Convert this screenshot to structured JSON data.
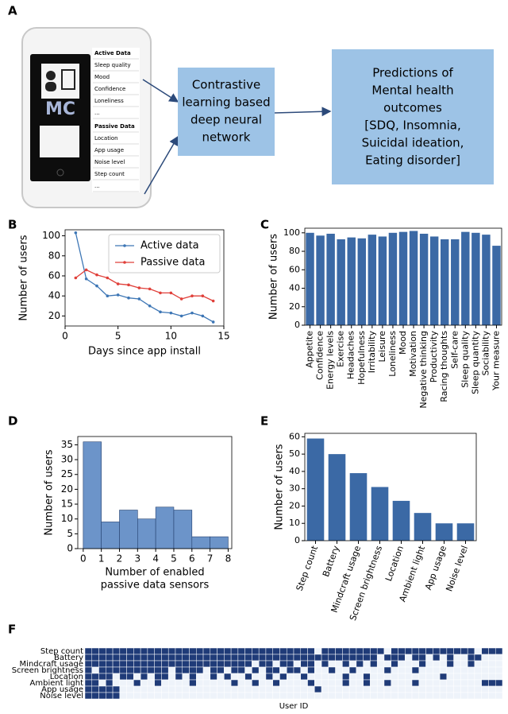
{
  "diagram": {
    "panel": "A",
    "phone": {
      "logo": "MC",
      "active_title": "Active Data",
      "active_items": [
        "Sleep quality",
        "Mood",
        "Confidence",
        "Loneliness",
        "..."
      ],
      "passive_title": "Passive Data",
      "passive_items": [
        "Location",
        "App usage",
        "Noise level",
        "Step count",
        "..."
      ]
    },
    "model": [
      "Contrastive",
      "learning based",
      "deep neural",
      "network"
    ],
    "output": [
      "Predictions of",
      "Mental health",
      "outcomes",
      "[SDQ, Insomnia,",
      "Suicidal ideation,",
      "Eating disorder]"
    ]
  },
  "chart_data": [
    {
      "type": "line",
      "panel": "B",
      "xlabel": "Days since app install",
      "ylabel": "Number of users",
      "x": [
        1,
        2,
        3,
        4,
        5,
        6,
        7,
        8,
        9,
        10,
        11,
        12,
        13,
        14
      ],
      "series": [
        {
          "name": "Active data",
          "color": "#3d76b5",
          "values": [
            103,
            57,
            50,
            40,
            41,
            38,
            37,
            30,
            24,
            23,
            20,
            23,
            20,
            14
          ]
        },
        {
          "name": "Passive data",
          "color": "#e0403a",
          "values": [
            58,
            66,
            61,
            58,
            52,
            51,
            48,
            47,
            43,
            43,
            37,
            40,
            40,
            35
          ]
        }
      ],
      "xlim": [
        0,
        15
      ],
      "xticks": [
        0,
        5,
        10,
        15
      ],
      "ylim": [
        10,
        106
      ],
      "yticks": [
        20,
        40,
        60,
        80,
        100
      ],
      "legend": "upper right"
    },
    {
      "type": "bar",
      "panel": "C",
      "ylabel": "Number of users",
      "categories": [
        "Appetite",
        "Confidence",
        "Energy levels",
        "Exercise",
        "Headaches",
        "Hopefulness",
        "Irritability",
        "Leisure",
        "Loneliness",
        "Mood",
        "Motivation",
        "Negative thinking",
        "Productivity",
        "Racing thoughts",
        "Self-care",
        "Sleep quality",
        "Sleep quantity",
        "Sociability",
        "Your measure"
      ],
      "values": [
        100,
        97,
        99,
        93,
        95,
        94,
        98,
        96,
        100,
        101,
        102,
        99,
        96,
        93,
        93,
        101,
        100,
        98,
        86
      ],
      "color": "#3b69a5",
      "ylim": [
        0,
        105
      ],
      "yticks": [
        0,
        20,
        40,
        60,
        80,
        100
      ]
    },
    {
      "type": "histogram",
      "panel": "D",
      "xlabel": [
        "Number of enabled",
        "passive data sensors"
      ],
      "ylabel": "Number of users",
      "bins": [
        0,
        1,
        2,
        3,
        4,
        5,
        6,
        7,
        8
      ],
      "values": [
        36,
        9,
        13,
        10,
        14,
        13,
        4,
        4
      ],
      "color": "#6c94c9",
      "edgecolor": "#24406e",
      "xlim": [
        -0.3,
        8.2
      ],
      "xticks": [
        0,
        1,
        2,
        3,
        4,
        5,
        6,
        7,
        8
      ],
      "ylim": [
        0,
        37.8
      ],
      "yticks": [
        0,
        5,
        10,
        15,
        20,
        25,
        30,
        35
      ]
    },
    {
      "type": "bar",
      "panel": "E",
      "ylabel": "Number of users",
      "categories": [
        "Step count",
        "Battery",
        "Mindcraft usage",
        "Screen brightness",
        "Location",
        "Ambient light",
        "App usage",
        "Noise level"
      ],
      "values": [
        59,
        50,
        39,
        31,
        23,
        16,
        10,
        10
      ],
      "color": "#3b69a5",
      "ylim": [
        0,
        62
      ],
      "yticks": [
        0,
        10,
        20,
        30,
        40,
        50,
        60
      ]
    },
    {
      "type": "heatmap",
      "panel": "F",
      "xlabel": "User ID",
      "rows": [
        "Step count",
        "Battery",
        "Mindcraft usage",
        "Screen brightness",
        "Location",
        "Ambient light",
        "App usage",
        "Noise level"
      ],
      "colors": [
        "#eef3fa",
        "#1f3b78"
      ],
      "values": [
        [
          1,
          1,
          1,
          1,
          1,
          1,
          1,
          1,
          1,
          1,
          1,
          1,
          1,
          1,
          1,
          1,
          1,
          1,
          1,
          1,
          1,
          1,
          1,
          1,
          1,
          1,
          1,
          1,
          1,
          1,
          1,
          1,
          1,
          0,
          1,
          1,
          1,
          1,
          1,
          1,
          1,
          1,
          1,
          0,
          1,
          1,
          1,
          1,
          1,
          1,
          1,
          1,
          1,
          1,
          1,
          1,
          0,
          1,
          1,
          1
        ],
        [
          1,
          1,
          1,
          1,
          1,
          1,
          1,
          1,
          1,
          1,
          1,
          1,
          1,
          1,
          1,
          1,
          1,
          1,
          1,
          1,
          1,
          1,
          1,
          1,
          1,
          1,
          1,
          1,
          1,
          1,
          1,
          1,
          1,
          1,
          1,
          1,
          1,
          1,
          1,
          1,
          1,
          1,
          0,
          1,
          1,
          1,
          0,
          1,
          1,
          0,
          1,
          0,
          1,
          0,
          0,
          1,
          1,
          0,
          0,
          0
        ],
        [
          1,
          1,
          1,
          1,
          1,
          1,
          1,
          1,
          1,
          1,
          1,
          1,
          1,
          1,
          1,
          1,
          1,
          1,
          1,
          1,
          1,
          1,
          1,
          1,
          0,
          1,
          1,
          0,
          1,
          1,
          0,
          1,
          1,
          0,
          1,
          0,
          0,
          1,
          0,
          1,
          0,
          1,
          0,
          0,
          1,
          0,
          0,
          0,
          1,
          0,
          0,
          0,
          1,
          0,
          0,
          1,
          0,
          0,
          0,
          0
        ],
        [
          1,
          0,
          1,
          1,
          1,
          1,
          1,
          1,
          1,
          1,
          1,
          1,
          0,
          1,
          1,
          1,
          1,
          0,
          1,
          1,
          0,
          1,
          1,
          0,
          1,
          0,
          1,
          1,
          0,
          1,
          1,
          0,
          1,
          0,
          0,
          1,
          0,
          0,
          1,
          0,
          0,
          0,
          0,
          1,
          0,
          0,
          0,
          1,
          0,
          0,
          0,
          0,
          0,
          0,
          0,
          0,
          0,
          0,
          0,
          0
        ],
        [
          1,
          1,
          1,
          1,
          0,
          1,
          1,
          0,
          1,
          0,
          1,
          1,
          0,
          1,
          0,
          1,
          0,
          0,
          1,
          0,
          1,
          0,
          0,
          1,
          0,
          0,
          1,
          0,
          1,
          0,
          0,
          1,
          0,
          0,
          0,
          0,
          0,
          1,
          0,
          0,
          1,
          0,
          0,
          0,
          0,
          0,
          0,
          0,
          0,
          0,
          0,
          1,
          0,
          0,
          0,
          0,
          0,
          0,
          0,
          0
        ],
        [
          1,
          1,
          0,
          1,
          0,
          0,
          0,
          1,
          0,
          0,
          1,
          0,
          0,
          0,
          0,
          1,
          0,
          0,
          0,
          0,
          0,
          1,
          0,
          0,
          1,
          0,
          0,
          1,
          0,
          0,
          0,
          0,
          1,
          0,
          0,
          0,
          0,
          1,
          0,
          0,
          1,
          0,
          0,
          1,
          0,
          0,
          0,
          1,
          0,
          0,
          0,
          0,
          0,
          0,
          0,
          0,
          0,
          1,
          1,
          1
        ],
        [
          1,
          1,
          1,
          1,
          1,
          0,
          0,
          0,
          0,
          0,
          0,
          0,
          0,
          0,
          0,
          0,
          0,
          0,
          0,
          0,
          0,
          0,
          0,
          0,
          0,
          0,
          0,
          0,
          0,
          0,
          0,
          0,
          0,
          1,
          0,
          0,
          0,
          0,
          0,
          0,
          0,
          0,
          0,
          0,
          0,
          0,
          0,
          0,
          0,
          0,
          0,
          0,
          0,
          0,
          0,
          0,
          0,
          0,
          0,
          0
        ],
        [
          1,
          1,
          1,
          1,
          1,
          0,
          0,
          0,
          0,
          0,
          0,
          0,
          0,
          0,
          0,
          0,
          0,
          0,
          0,
          0,
          0,
          0,
          0,
          0,
          0,
          0,
          0,
          0,
          0,
          0,
          0,
          0,
          0,
          0,
          0,
          0,
          0,
          0,
          0,
          0,
          0,
          0,
          0,
          0,
          0,
          0,
          0,
          0,
          0,
          0,
          0,
          0,
          0,
          0,
          0,
          0,
          0,
          0,
          0,
          0
        ]
      ]
    }
  ]
}
